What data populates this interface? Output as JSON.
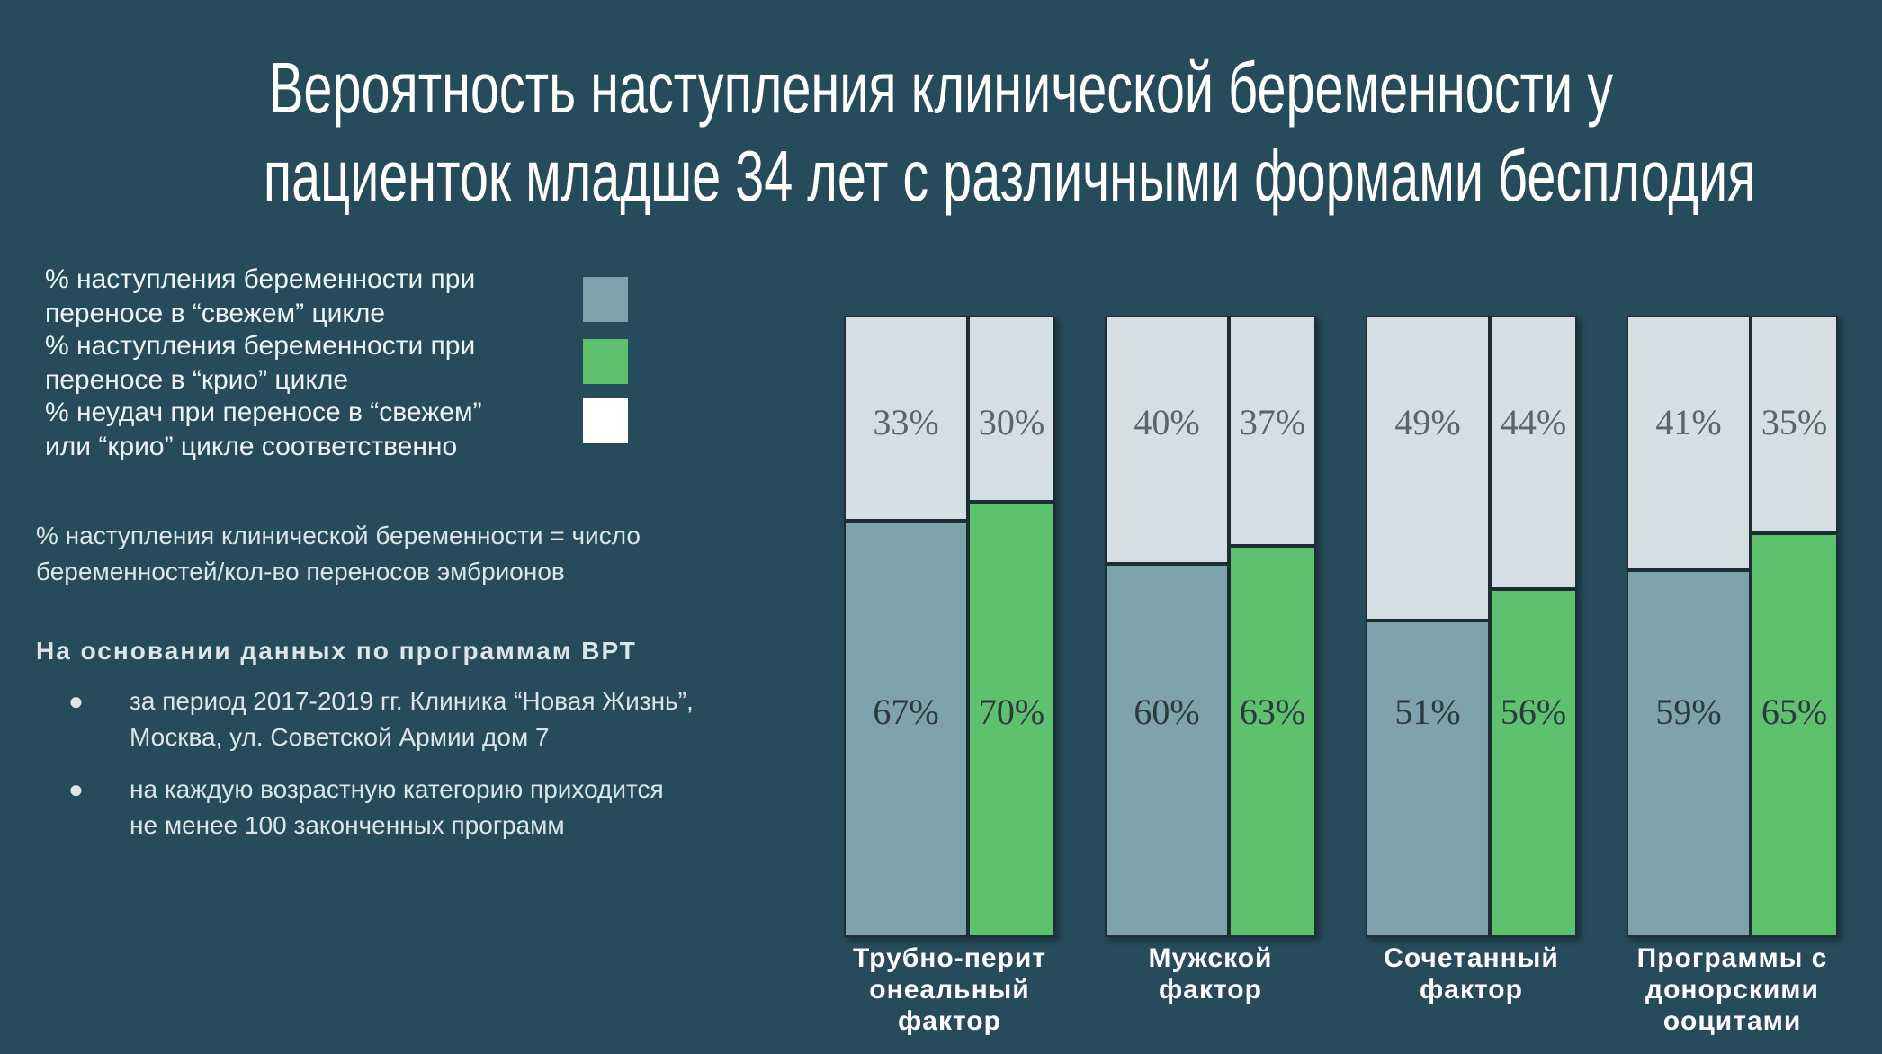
{
  "chart_data": {
    "type": "bar",
    "title_lines": [
      "Вероятность наступления клинической беременности у",
      "пациенток младше 34 лет с различными формами бесплодия"
    ],
    "categories": [
      "Трубно-перит\nонеальный\nфактор",
      "Мужской\nфактор",
      "Сочетанный\nфактор",
      "Программы с\nдонорскими\nооцитами"
    ],
    "ylim": [
      0,
      100
    ],
    "series": [
      {
        "name": "% наступления беременности при\nпереносе в “свежем” цикле",
        "color": "#7fa3ad",
        "values": [
          67,
          60,
          51,
          59
        ],
        "value_labels": [
          "67%",
          "60%",
          "51%",
          "59%"
        ],
        "failures": [
          33,
          40,
          49,
          41
        ],
        "failure_labels": [
          "33%",
          "40%",
          "49%",
          "41%"
        ]
      },
      {
        "name": "% наступления беременности при\nпереносе в “крио” цикле",
        "color": "#5dc16e",
        "values": [
          70,
          63,
          56,
          65
        ],
        "value_labels": [
          "70%",
          "63%",
          "56%",
          "65%"
        ],
        "failures": [
          30,
          37,
          44,
          35
        ],
        "failure_labels": [
          "30%",
          "37%",
          "44%",
          "35%"
        ]
      }
    ],
    "failure": {
      "name": "% неудач при переносе в “свежем”\nили “крио” цикле соответственно",
      "color": "#d4dfe3",
      "legend_color": "#ffffff"
    }
  },
  "notes": {
    "definition": "% наступления клинической беременности = число\nбеременностей/кол-во переносов эмбрионов",
    "heading": "На основании данных по программам ВРТ",
    "bullets": [
      "за период 2017-2019 гг. Клиника “Новая Жизнь”,\nМосква, ул. Советской Армии дом 7",
      "на каждую возрастную категорию приходится\nне менее 100 законченных программ"
    ]
  }
}
